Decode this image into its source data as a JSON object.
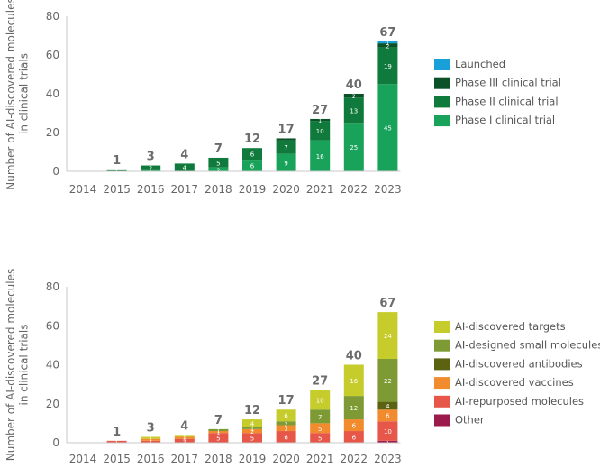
{
  "chart_data": [
    {
      "type": "bar",
      "stacked": true,
      "title": "",
      "xlabel": "",
      "ylabel": "Number of AI-discovered molecules in clinical trials",
      "ylim": [
        0,
        80
      ],
      "yticks": [
        "0",
        "20",
        "40",
        "60",
        "80"
      ],
      "categories": [
        "2014",
        "2015",
        "2016",
        "2017",
        "2018",
        "2019",
        "2020",
        "2021",
        "2022",
        "2023"
      ],
      "totals": [
        "",
        "1",
        "3",
        "4",
        "7",
        "12",
        "17",
        "27",
        "40",
        "67"
      ],
      "series": [
        {
          "name": "Phase I clinical trial",
          "color": "#19a25a",
          "values": [
            0,
            0,
            1,
            0,
            2,
            6,
            9,
            16,
            25,
            45
          ]
        },
        {
          "name": "Phase II clinical trial",
          "color": "#0f7a3b",
          "values": [
            0,
            1,
            2,
            4,
            5,
            6,
            7,
            10,
            13,
            19
          ]
        },
        {
          "name": "Phase III clinical trial",
          "color": "#0b5228",
          "values": [
            0,
            0,
            0,
            0,
            0,
            0,
            1,
            1,
            2,
            2
          ]
        },
        {
          "name": "Launched",
          "color": "#1aa0d8",
          "values": [
            0,
            0,
            0,
            0,
            0,
            0,
            0,
            0,
            0,
            1
          ]
        }
      ],
      "legend_order": [
        "Launched",
        "Phase III clinical trial",
        "Phase II clinical trial",
        "Phase I clinical trial"
      ]
    },
    {
      "type": "bar",
      "stacked": true,
      "title": "",
      "xlabel": "",
      "ylabel": "Number of AI-discovered molecules in clinical trials",
      "ylim": [
        0,
        80
      ],
      "yticks": [
        "0",
        "20",
        "40",
        "60",
        "80"
      ],
      "categories": [
        "2014",
        "2015",
        "2016",
        "2017",
        "2018",
        "2019",
        "2020",
        "2021",
        "2022",
        "2023"
      ],
      "totals": [
        "",
        "1",
        "3",
        "4",
        "7",
        "12",
        "17",
        "27",
        "40",
        "67"
      ],
      "series": [
        {
          "name": "Other",
          "color": "#9b1b4c",
          "values": [
            0,
            0,
            0,
            0,
            0,
            0,
            0,
            0,
            0,
            1
          ]
        },
        {
          "name": "AI-repurposed molecules",
          "color": "#e6574a",
          "values": [
            0,
            1,
            1,
            2,
            5,
            5,
            6,
            5,
            6,
            10
          ]
        },
        {
          "name": "AI-discovered vaccines",
          "color": "#f28a2e",
          "values": [
            0,
            0,
            1,
            1,
            1,
            2,
            3,
            5,
            6,
            6
          ]
        },
        {
          "name": "AI-discovered antibodies",
          "color": "#5b6312",
          "values": [
            0,
            0,
            0,
            0,
            0,
            0,
            0,
            0,
            0,
            4
          ]
        },
        {
          "name": "AI-designed small molecules",
          "color": "#7e9a34",
          "values": [
            0,
            0,
            0,
            0,
            1,
            1,
            2,
            7,
            12,
            22
          ]
        },
        {
          "name": "AI-discovered targets",
          "color": "#c6cc2b",
          "values": [
            0,
            0,
            1,
            1,
            0,
            4,
            6,
            10,
            16,
            24
          ]
        }
      ],
      "legend_order": [
        "AI-discovered targets",
        "AI-designed small molecules",
        "AI-discovered antibodies",
        "AI-discovered vaccines",
        "AI-repurposed molecules",
        "Other"
      ]
    }
  ]
}
